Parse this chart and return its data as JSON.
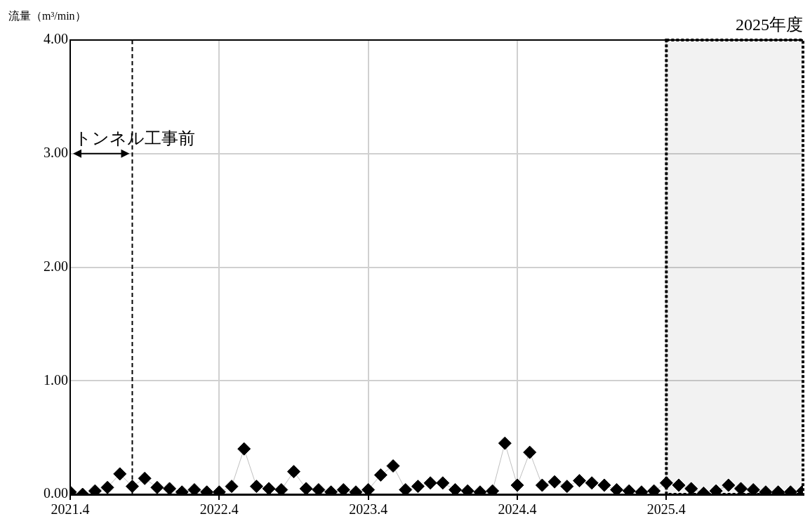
{
  "chart_data": {
    "type": "line",
    "ylabel": "流量（m³/min）",
    "x": [
      "2021-04",
      "2021-05",
      "2021-06",
      "2021-07",
      "2021-08",
      "2021-09",
      "2021-10",
      "2021-11",
      "2021-12",
      "2022-01",
      "2022-02",
      "2022-03",
      "2022-04",
      "2022-05",
      "2022-06",
      "2022-07",
      "2022-08",
      "2022-09",
      "2022-10",
      "2022-11",
      "2022-12",
      "2023-01",
      "2023-02",
      "2023-03",
      "2023-04",
      "2023-05",
      "2023-06",
      "2023-07",
      "2023-08",
      "2023-09",
      "2023-10",
      "2023-11",
      "2023-12",
      "2024-01",
      "2024-02",
      "2024-03",
      "2024-04",
      "2024-05",
      "2024-06",
      "2024-07",
      "2024-08",
      "2024-09",
      "2024-10",
      "2024-11",
      "2024-12",
      "2025-01",
      "2025-02",
      "2025-03",
      "2025-04",
      "2025-05",
      "2025-06",
      "2025-07",
      "2025-08",
      "2025-09",
      "2025-10",
      "2025-11",
      "2025-12",
      "2026-01",
      "2026-02",
      "2026-03"
    ],
    "series": [
      {
        "color": "#000000",
        "values": [
          0.02,
          0.0,
          0.03,
          0.06,
          0.18,
          0.07,
          0.14,
          0.06,
          0.05,
          0.02,
          0.04,
          0.02,
          0.02,
          0.07,
          0.4,
          0.07,
          0.05,
          0.04,
          0.2,
          0.05,
          0.04,
          0.02,
          0.04,
          0.02,
          0.04,
          0.17,
          0.25,
          0.04,
          0.07,
          0.1,
          0.1,
          0.04,
          0.03,
          0.02,
          0.03,
          0.45,
          0.08,
          0.37,
          0.08,
          0.11,
          0.07,
          0.12,
          0.1,
          0.08,
          0.04,
          0.03,
          0.02,
          0.03,
          0.1,
          0.08,
          0.05,
          0.01,
          0.03,
          0.08,
          0.05,
          0.04,
          0.02,
          0.02,
          0.02,
          0.03
        ]
      }
    ],
    "marker": "diamond",
    "grid": true,
    "legend": false,
    "xlim": [
      "2021-04",
      "2026-03"
    ],
    "xticks": [
      {
        "value": "2021-04",
        "label": "2021.4"
      },
      {
        "value": "2022-04",
        "label": "2022.4"
      },
      {
        "value": "2023-04",
        "label": "2023.4"
      },
      {
        "value": "2024-04",
        "label": "2024.4"
      },
      {
        "value": "2025-04",
        "label": "2025.4"
      }
    ],
    "ylim": [
      0,
      4
    ],
    "yticks": [
      {
        "value": 0,
        "label": "0.00"
      },
      {
        "value": 1,
        "label": "1.00"
      },
      {
        "value": 2,
        "label": "2.00"
      },
      {
        "value": 3,
        "label": "3.00"
      },
      {
        "value": 4,
        "label": "4.00"
      }
    ],
    "ref_lines": [
      {
        "axis": "x",
        "value": "2021-09",
        "label": "トンネル工事前",
        "line_style": "dashed",
        "color": "#000000"
      }
    ],
    "bands": [
      {
        "axis": "x",
        "from": "2025-04",
        "to": "2026-03",
        "label": "2025年度",
        "color": "#000000"
      }
    ]
  }
}
